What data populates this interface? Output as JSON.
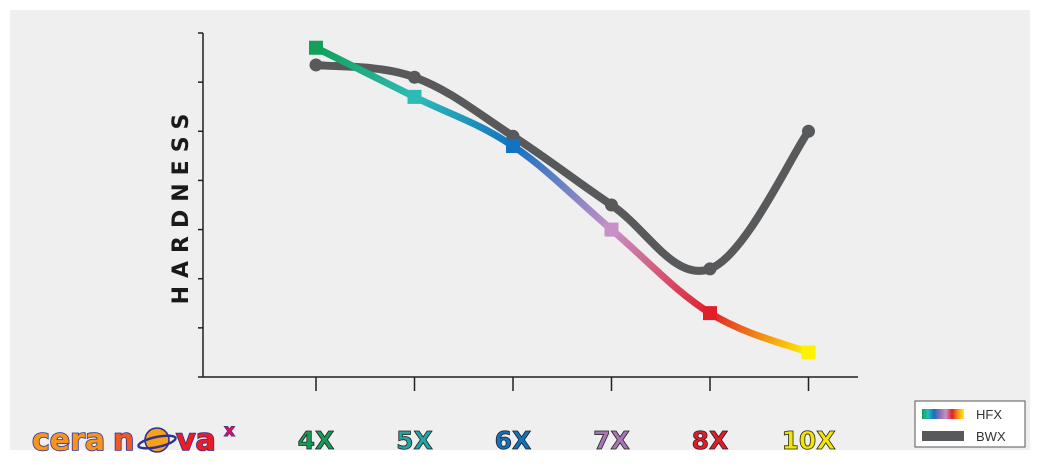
{
  "brand": {
    "name": "cera nova",
    "superscript": "x",
    "colors": [
      "#f7941d",
      "#ed1c24",
      "#d4145a",
      "#2e3192"
    ]
  },
  "chart_data": {
    "type": "line",
    "ylabel": "HARDNESS",
    "xlabel": "",
    "title": "",
    "grid": false,
    "legend_position": "bottom-right",
    "categories": [
      "4X",
      "5X",
      "6X",
      "7X",
      "8X",
      "10X"
    ],
    "category_colors": [
      "#179958",
      "#1fa6a4",
      "#1270bc",
      "#a676b3",
      "#e11c2b",
      "#f2e500"
    ],
    "ylim": [
      0,
      7
    ],
    "y_ticks": 7,
    "series": [
      {
        "name": "HFX",
        "marker": "square",
        "values": [
          6.7,
          5.7,
          4.7,
          3.0,
          1.3,
          0.5
        ],
        "colors": [
          "#12a05a",
          "#2cbcb5",
          "#1372c1",
          "#c890c7",
          "#e01f29",
          "#fff200"
        ]
      },
      {
        "name": "BWX",
        "marker": "circle",
        "values": [
          6.35,
          6.1,
          4.9,
          3.5,
          2.2,
          5.0
        ],
        "color": "#58595b"
      }
    ]
  }
}
